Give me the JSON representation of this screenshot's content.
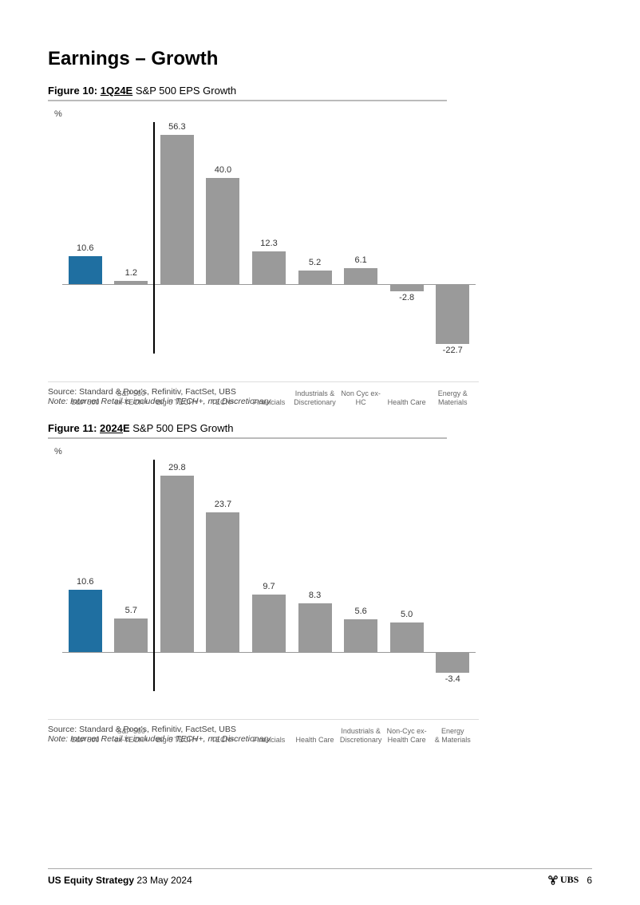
{
  "page_title": "Earnings – Growth",
  "fig10": {
    "type": "bar",
    "number": "Figure 10:",
    "period": "1Q24E",
    "rest": " S&P 500 EPS Growth",
    "y_label": "%",
    "categories": [
      "S&P 500",
      "S&P 500\nex-TECH+",
      "Big 6 TECH+",
      "TECH+",
      "Financials",
      "Industrials &\nDiscretionary",
      "Non Cyc ex-\nHC",
      "Health Care",
      "Energy &\nMaterials"
    ],
    "values": [
      10.6,
      1.2,
      56.3,
      40.0,
      12.3,
      5.2,
      6.1,
      -2.8,
      -22.7
    ],
    "colors": [
      "#1f6fa1",
      "#9a9a9a",
      "#9a9a9a",
      "#9a9a9a",
      "#9a9a9a",
      "#9a9a9a",
      "#9a9a9a",
      "#9a9a9a",
      "#9a9a9a"
    ],
    "ylim": [
      -25,
      60
    ],
    "divider_after_index": 1,
    "source": "Source: Standard & Poor's, Refinitiv, FactSet, UBS",
    "note": "Note: Internet Retail is included in TECH+, not Discretionary"
  },
  "fig11": {
    "type": "bar",
    "number": "Figure 11:",
    "period": "2024E",
    "period_underline": "2024",
    "rest": " S&P 500 EPS Growth",
    "y_label": "%",
    "categories": [
      "S&P 500",
      "S&P 500\nex-TECH+",
      "Big 6 TECH+",
      "TECH+",
      "Financials",
      "Health Care",
      "Industrials &\nDiscretionary",
      "Non-Cyc ex-\nHealth Care",
      "Energy\n& Materials"
    ],
    "values": [
      10.6,
      5.7,
      29.8,
      23.7,
      9.7,
      8.3,
      5.6,
      5.0,
      -3.4
    ],
    "colors": [
      "#1f6fa1",
      "#9a9a9a",
      "#9a9a9a",
      "#9a9a9a",
      "#9a9a9a",
      "#9a9a9a",
      "#9a9a9a",
      "#9a9a9a",
      "#9a9a9a"
    ],
    "ylim": [
      -6,
      32
    ],
    "divider_after_index": 1,
    "source": "Source: Standard & Poor's, Refinitiv, FactSet, UBS",
    "note": "Note: Internet Retail is included in TECH+, not Discretionary"
  },
  "footer": {
    "doc": "US Equity Strategy",
    "date": "23 May 2024",
    "brand": "UBS",
    "page_no": "6"
  }
}
